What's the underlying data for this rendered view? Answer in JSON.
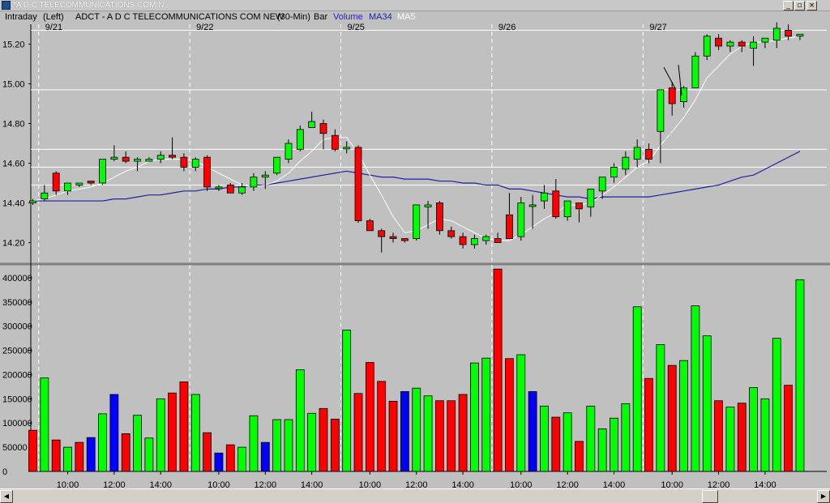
{
  "window": {
    "title": "*A D C TELECOMMUNICATIONS COM N",
    "buttons": [
      "_",
      "▫",
      "×"
    ]
  },
  "infobar": {
    "mode": "Intraday",
    "axis": "(Left)",
    "symbol_desc": "ADCT - A D C TELECOMMUNICATIONS COM NEW",
    "interval": "(30-Min)",
    "style": "Bar",
    "volume_label": "Volume",
    "ma_long_label": "MA34",
    "ma_short_label": "MA5"
  },
  "colors": {
    "up": "#00ff00",
    "down": "#ff0000",
    "volume_neutral": "#0000ff",
    "ma34": "#2020a0",
    "ma5": "#ffffff",
    "background": "#c0c0c0"
  },
  "chart_data": [
    {
      "type": "candlestick",
      "price_ticks": [
        "15.20",
        "15.00",
        "14.80",
        "14.60",
        "14.40",
        "14.20"
      ],
      "price_tick_values": [
        15.2,
        15.0,
        14.8,
        14.6,
        14.4,
        14.2
      ],
      "ylim": [
        14.1,
        15.3
      ],
      "horizontal_lines": [
        15.27,
        14.97,
        14.67,
        14.58,
        14.49
      ],
      "day_labels": [
        "9/21",
        "9/22",
        "9/25",
        "9/26",
        "9/27"
      ],
      "day_start_index": [
        1,
        14,
        27,
        40,
        53
      ],
      "time_labels": [
        {
          "label": "10:00",
          "index": 3
        },
        {
          "label": "12:00",
          "index": 7
        },
        {
          "label": "14:00",
          "index": 11
        },
        {
          "label": "10:00",
          "index": 16
        },
        {
          "label": "12:00",
          "index": 20
        },
        {
          "label": "14:00",
          "index": 24
        },
        {
          "label": "10:00",
          "index": 29
        },
        {
          "label": "12:00",
          "index": 33
        },
        {
          "label": "14:00",
          "index": 37
        },
        {
          "label": "10:00",
          "index": 42
        },
        {
          "label": "12:00",
          "index": 46
        },
        {
          "label": "14:00",
          "index": 50
        },
        {
          "label": "10:00",
          "index": 55
        },
        {
          "label": "12:00",
          "index": 59
        },
        {
          "label": "14:00",
          "index": 63
        }
      ],
      "bars": [
        [
          14.4,
          14.42,
          14.39,
          14.41
        ],
        [
          14.42,
          14.49,
          14.41,
          14.45
        ],
        [
          14.55,
          14.56,
          14.44,
          14.46
        ],
        [
          14.46,
          14.5,
          14.44,
          14.5
        ],
        [
          14.49,
          14.5,
          14.48,
          14.5
        ],
        [
          14.51,
          14.51,
          14.49,
          14.5
        ],
        [
          14.5,
          14.62,
          14.49,
          14.62
        ],
        [
          14.62,
          14.69,
          14.61,
          14.63
        ],
        [
          14.63,
          14.66,
          14.6,
          14.61
        ],
        [
          14.61,
          14.63,
          14.56,
          14.62
        ],
        [
          14.61,
          14.63,
          14.61,
          14.62
        ],
        [
          14.62,
          14.66,
          14.6,
          14.64
        ],
        [
          14.64,
          14.73,
          14.62,
          14.63
        ],
        [
          14.63,
          14.65,
          14.56,
          14.58
        ],
        [
          14.58,
          14.63,
          14.56,
          14.62
        ],
        [
          14.63,
          14.64,
          14.46,
          14.48
        ],
        [
          14.48,
          14.49,
          14.46,
          14.48
        ],
        [
          14.49,
          14.5,
          14.45,
          14.45
        ],
        [
          14.45,
          14.5,
          14.44,
          14.48
        ],
        [
          14.48,
          14.55,
          14.46,
          14.53
        ],
        [
          14.53,
          14.56,
          14.47,
          14.54
        ],
        [
          14.55,
          14.63,
          14.54,
          14.63
        ],
        [
          14.62,
          14.72,
          14.6,
          14.7
        ],
        [
          14.67,
          14.79,
          14.66,
          14.77
        ],
        [
          14.78,
          14.86,
          14.78,
          14.81
        ],
        [
          14.8,
          14.82,
          14.67,
          14.75
        ],
        [
          14.74,
          14.77,
          14.66,
          14.67
        ],
        [
          14.68,
          14.71,
          14.65,
          14.68
        ],
        [
          14.68,
          14.69,
          14.3,
          14.31
        ],
        [
          14.31,
          14.32,
          14.26,
          14.26
        ],
        [
          14.26,
          14.27,
          14.15,
          14.23
        ],
        [
          14.23,
          14.25,
          14.2,
          14.22
        ],
        [
          14.22,
          14.22,
          14.2,
          14.21
        ],
        [
          14.22,
          14.39,
          14.21,
          14.39
        ],
        [
          14.38,
          14.41,
          14.27,
          14.39
        ],
        [
          14.4,
          14.41,
          14.24,
          14.26
        ],
        [
          14.26,
          14.28,
          14.22,
          14.23
        ],
        [
          14.23,
          14.25,
          14.17,
          14.19
        ],
        [
          14.19,
          14.24,
          14.17,
          14.22
        ],
        [
          14.21,
          14.24,
          14.19,
          14.23
        ],
        [
          14.22,
          14.25,
          14.2,
          14.2
        ],
        [
          14.34,
          14.45,
          14.23,
          14.22
        ],
        [
          14.23,
          14.43,
          14.21,
          14.4
        ],
        [
          14.39,
          14.44,
          14.27,
          14.39
        ],
        [
          14.41,
          14.49,
          14.37,
          14.45
        ],
        [
          14.46,
          14.52,
          14.32,
          14.33
        ],
        [
          14.33,
          14.41,
          14.31,
          14.41
        ],
        [
          14.4,
          14.4,
          14.3,
          14.37
        ],
        [
          14.38,
          14.47,
          14.33,
          14.47
        ],
        [
          14.46,
          14.53,
          14.42,
          14.53
        ],
        [
          14.53,
          14.6,
          14.5,
          14.58
        ],
        [
          14.57,
          14.66,
          14.54,
          14.63
        ],
        [
          14.62,
          14.72,
          14.58,
          14.68
        ],
        [
          14.67,
          14.7,
          14.6,
          14.62
        ],
        [
          14.76,
          14.97,
          14.6,
          14.97
        ],
        [
          14.98,
          15.01,
          14.84,
          14.9
        ],
        [
          14.91,
          14.99,
          14.88,
          14.98
        ],
        [
          14.98,
          15.16,
          14.98,
          15.14
        ],
        [
          15.14,
          15.25,
          15.12,
          15.24
        ],
        [
          15.23,
          15.25,
          15.17,
          15.19
        ],
        [
          15.19,
          15.22,
          15.16,
          15.21
        ],
        [
          15.21,
          15.22,
          15.16,
          15.19
        ],
        [
          15.18,
          15.24,
          15.09,
          15.21
        ],
        [
          15.21,
          15.23,
          15.18,
          15.23
        ],
        [
          15.22,
          15.31,
          15.18,
          15.28
        ],
        [
          15.27,
          15.3,
          15.22,
          15.24
        ],
        [
          15.24,
          15.25,
          15.22,
          15.25
        ]
      ],
      "ma5": [
        14.41,
        14.42,
        14.44,
        14.46,
        14.47,
        14.48,
        14.5,
        14.53,
        14.56,
        14.58,
        14.61,
        14.62,
        14.62,
        14.62,
        14.61,
        14.58,
        14.55,
        14.52,
        14.49,
        14.48,
        14.49,
        14.51,
        14.55,
        14.61,
        14.66,
        14.72,
        14.73,
        14.73,
        14.65,
        14.54,
        14.44,
        14.33,
        14.25,
        14.26,
        14.29,
        14.32,
        14.31,
        14.28,
        14.25,
        14.22,
        14.21,
        14.21,
        14.24,
        14.28,
        14.32,
        14.35,
        14.39,
        14.39,
        14.4,
        14.44,
        14.48,
        14.53,
        14.58,
        14.61,
        14.69,
        14.76,
        14.83,
        14.92,
        15.03,
        15.09,
        15.15,
        15.19,
        15.21,
        15.21,
        15.22,
        15.23,
        15.24
      ],
      "ma34": [
        14.41,
        14.41,
        14.41,
        14.41,
        14.41,
        14.41,
        14.41,
        14.42,
        14.42,
        14.43,
        14.44,
        14.44,
        14.45,
        14.46,
        14.46,
        14.47,
        14.47,
        14.48,
        14.48,
        14.49,
        14.49,
        14.5,
        14.51,
        14.52,
        14.53,
        14.54,
        14.55,
        14.56,
        14.55,
        14.54,
        14.53,
        14.53,
        14.52,
        14.52,
        14.52,
        14.51,
        14.51,
        14.5,
        14.5,
        14.49,
        14.49,
        14.47,
        14.47,
        14.46,
        14.45,
        14.44,
        14.43,
        14.43,
        14.42,
        14.43,
        14.43,
        14.43,
        14.43,
        14.43,
        14.44,
        14.45,
        14.46,
        14.47,
        14.48,
        14.49,
        14.51,
        14.53,
        14.54,
        14.57,
        14.6,
        14.63,
        14.66
      ]
    },
    {
      "type": "bar",
      "series_name": "Volume",
      "ticks": [
        "400000",
        "350000",
        "300000",
        "250000",
        "200000",
        "150000",
        "100000",
        "50000",
        "0"
      ],
      "tick_values": [
        400000,
        350000,
        300000,
        250000,
        200000,
        150000,
        100000,
        50000,
        0
      ],
      "ylim": [
        0,
        425000
      ],
      "values": [
        85000,
        193000,
        65000,
        50000,
        60000,
        70000,
        119000,
        159000,
        78000,
        116000,
        69000,
        150000,
        162000,
        185000,
        159000,
        80000,
        38000,
        55000,
        50000,
        115000,
        60000,
        107000,
        107000,
        210000,
        120000,
        130000,
        108000,
        292000,
        161000,
        225000,
        186000,
        145000,
        165000,
        172000,
        156000,
        146000,
        146000,
        159000,
        224000,
        234000,
        418000,
        233000,
        241000,
        165000,
        135000,
        112000,
        121000,
        62000,
        135000,
        88000,
        110000,
        140000,
        340000,
        192000,
        262000,
        219000,
        229000,
        342000,
        280000,
        146000,
        133000,
        141000,
        173000,
        150000,
        275000,
        178000,
        396000
      ],
      "colors": [
        "d",
        "u",
        "d",
        "u",
        "d",
        "n",
        "u",
        "n",
        "d",
        "u",
        "u",
        "u",
        "d",
        "d",
        "u",
        "d",
        "n",
        "d",
        "u",
        "u",
        "n",
        "u",
        "u",
        "u",
        "u",
        "d",
        "d",
        "u",
        "d",
        "d",
        "d",
        "d",
        "n",
        "u",
        "u",
        "d",
        "d",
        "d",
        "u",
        "u",
        "d",
        "d",
        "u",
        "n",
        "u",
        "d",
        "u",
        "d",
        "u",
        "u",
        "u",
        "u",
        "u",
        "d",
        "u",
        "d",
        "u",
        "u",
        "u",
        "d",
        "u",
        "d",
        "u",
        "u",
        "u",
        "d",
        "u"
      ]
    }
  ]
}
